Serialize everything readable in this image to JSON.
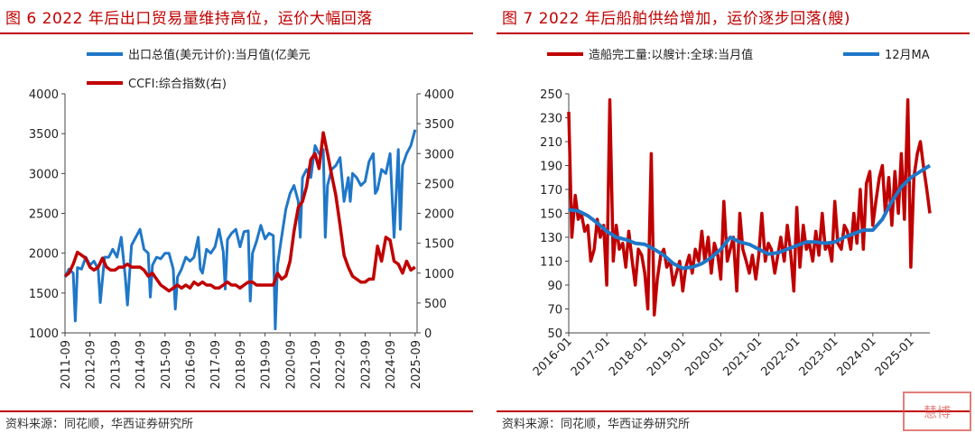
{
  "left": {
    "title": "图 6 2022 年后出口贸易量维持高位，运价大幅回落",
    "source": "资料来源：同花顺，华西证券研究所"
  },
  "right": {
    "title": "图 7 2022 年后船舶供给增加，运价逐步回落(艘)",
    "source": "资料来源：同花顺，华西证券研究所"
  },
  "watermark": "慧博",
  "colors": {
    "blue": "#1f77c8",
    "red": "#c00000"
  },
  "chart_data": [
    {
      "type": "line",
      "title": "",
      "x_range": [
        2011.67,
        2025.75
      ],
      "x_tick_labels": [
        "2011-09",
        "2012-09",
        "2013-09",
        "2014-09",
        "2015-09",
        "2016-09",
        "2017-09",
        "2018-09",
        "2019-09",
        "2020-09",
        "2021-09",
        "2022-09",
        "2023-09",
        "2024-09",
        "2025-09"
      ],
      "x_tick_values": [
        2011.67,
        2012.67,
        2013.67,
        2014.67,
        2015.67,
        2016.67,
        2017.67,
        2018.67,
        2019.67,
        2020.67,
        2021.67,
        2022.67,
        2023.67,
        2024.67,
        2025.67
      ],
      "y_left": {
        "ylim": [
          1000,
          4000
        ],
        "ticks": [
          1000,
          1500,
          2000,
          2500,
          3000,
          3500,
          4000
        ]
      },
      "y_right": {
        "ylim": [
          0,
          4000
        ],
        "ticks": [
          0,
          500,
          1000,
          1500,
          2000,
          2500,
          3000,
          3500,
          4000
        ]
      },
      "series": [
        {
          "name": "出口总值(美元计价):当月值(亿美元",
          "axis": "left",
          "color": "#1f77c8",
          "x": [
            2011.67,
            2011.83,
            2012.0,
            2012.08,
            2012.17,
            2012.33,
            2012.5,
            2012.67,
            2012.83,
            2013.0,
            2013.08,
            2013.25,
            2013.42,
            2013.58,
            2013.75,
            2013.92,
            2014.08,
            2014.17,
            2014.33,
            2014.5,
            2014.67,
            2014.83,
            2015.0,
            2015.08,
            2015.17,
            2015.33,
            2015.5,
            2015.67,
            2015.83,
            2016.0,
            2016.08,
            2016.17,
            2016.33,
            2016.5,
            2016.67,
            2016.83,
            2017.0,
            2017.08,
            2017.17,
            2017.33,
            2017.5,
            2017.67,
            2017.83,
            2018.0,
            2018.08,
            2018.17,
            2018.33,
            2018.5,
            2018.67,
            2018.83,
            2019.0,
            2019.08,
            2019.17,
            2019.33,
            2019.5,
            2019.67,
            2019.83,
            2020.0,
            2020.08,
            2020.17,
            2020.33,
            2020.5,
            2020.67,
            2020.83,
            2021.0,
            2021.08,
            2021.17,
            2021.33,
            2021.5,
            2021.67,
            2021.83,
            2022.0,
            2022.08,
            2022.17,
            2022.33,
            2022.5,
            2022.67,
            2022.83,
            2023.0,
            2023.08,
            2023.17,
            2023.33,
            2023.5,
            2023.67,
            2023.83,
            2024.0,
            2024.08,
            2024.17,
            2024.33,
            2024.5,
            2024.67,
            2024.83,
            2025.0,
            2025.08,
            2025.17,
            2025.33,
            2025.5,
            2025.67
          ],
          "values": [
            1700,
            1800,
            1750,
            1150,
            1820,
            1800,
            1950,
            1850,
            1900,
            1800,
            1380,
            1950,
            1950,
            2050,
            1950,
            2200,
            1700,
            1350,
            2100,
            2200,
            2300,
            2050,
            2000,
            1450,
            1850,
            1950,
            1930,
            2000,
            2000,
            1800,
            1300,
            1700,
            1800,
            1950,
            1900,
            1950,
            2200,
            1800,
            1750,
            2050,
            2000,
            2080,
            2300,
            2020,
            1550,
            2170,
            2250,
            2300,
            2080,
            2270,
            2280,
            1400,
            2000,
            2150,
            2350,
            2180,
            2250,
            2220,
            1050,
            1850,
            2200,
            2550,
            2750,
            2850,
            2650,
            2200,
            2950,
            3050,
            2950,
            3350,
            3250,
            3300,
            2200,
            2850,
            3050,
            3100,
            3200,
            2650,
            2950,
            2650,
            3000,
            2950,
            2850,
            2900,
            3150,
            3250,
            2750,
            2800,
            3050,
            3000,
            3250,
            2200,
            3300,
            2300,
            3100,
            3250,
            3350,
            3550
          ]
        },
        {
          "name": "CCFI:综合指数(右)",
          "axis": "right",
          "color": "#c00000",
          "x": [
            2011.67,
            2011.83,
            2012.0,
            2012.17,
            2012.33,
            2012.5,
            2012.67,
            2012.83,
            2013.0,
            2013.17,
            2013.33,
            2013.5,
            2013.67,
            2013.83,
            2014.0,
            2014.17,
            2014.33,
            2014.5,
            2014.67,
            2014.83,
            2015.0,
            2015.17,
            2015.33,
            2015.5,
            2015.67,
            2015.83,
            2016.0,
            2016.17,
            2016.33,
            2016.5,
            2016.67,
            2016.83,
            2017.0,
            2017.17,
            2017.33,
            2017.5,
            2017.67,
            2017.83,
            2018.0,
            2018.17,
            2018.33,
            2018.5,
            2018.67,
            2018.83,
            2019.0,
            2019.17,
            2019.33,
            2019.5,
            2019.67,
            2019.83,
            2020.0,
            2020.17,
            2020.33,
            2020.5,
            2020.67,
            2020.83,
            2021.0,
            2021.17,
            2021.33,
            2021.5,
            2021.67,
            2021.83,
            2022.0,
            2022.17,
            2022.33,
            2022.5,
            2022.67,
            2022.83,
            2023.0,
            2023.17,
            2023.33,
            2023.5,
            2023.67,
            2023.83,
            2024.0,
            2024.17,
            2024.33,
            2024.5,
            2024.67,
            2024.83,
            2025.0,
            2025.17,
            2025.33,
            2025.5,
            2025.67
          ],
          "values": [
            950,
            1000,
            1150,
            1350,
            1300,
            1250,
            1100,
            1050,
            1100,
            1250,
            1100,
            1050,
            1050,
            1100,
            1100,
            1150,
            1100,
            1100,
            1100,
            1050,
            950,
            1000,
            900,
            800,
            750,
            700,
            750,
            800,
            750,
            800,
            750,
            850,
            800,
            850,
            800,
            800,
            750,
            750,
            800,
            850,
            800,
            800,
            750,
            800,
            850,
            850,
            800,
            800,
            800,
            800,
            800,
            1000,
            900,
            950,
            1200,
            1700,
            2100,
            2200,
            2450,
            2900,
            3000,
            2750,
            3350,
            3000,
            2650,
            2300,
            1800,
            1300,
            1100,
            950,
            900,
            850,
            850,
            900,
            900,
            1450,
            1200,
            1600,
            1550,
            1200,
            1150,
            1000,
            1200,
            1050,
            1100
          ]
        }
      ]
    },
    {
      "type": "line",
      "title": "",
      "x_range": [
        2016.0,
        2025.5
      ],
      "x_tick_labels": [
        "2016-01",
        "2017-01",
        "2018-01",
        "2019-01",
        "2020-01",
        "2021-01",
        "2022-01",
        "2023-01",
        "2024-01",
        "2025-01"
      ],
      "x_tick_values": [
        2016.0,
        2017.0,
        2018.0,
        2019.0,
        2020.0,
        2021.0,
        2022.0,
        2023.0,
        2024.0,
        2025.0
      ],
      "ylim": [
        50,
        250
      ],
      "y_ticks": [
        50,
        70,
        90,
        110,
        130,
        150,
        170,
        190,
        210,
        230,
        250
      ],
      "series": [
        {
          "name": "造船完工量:以艘计:全球:当月值",
          "color": "#c00000",
          "x": [
            2016.0,
            2016.08,
            2016.17,
            2016.25,
            2016.33,
            2016.42,
            2016.5,
            2016.58,
            2016.67,
            2016.75,
            2016.83,
            2016.92,
            2017.0,
            2017.08,
            2017.17,
            2017.25,
            2017.33,
            2017.42,
            2017.5,
            2017.58,
            2017.67,
            2017.75,
            2017.83,
            2017.92,
            2018.0,
            2018.08,
            2018.17,
            2018.25,
            2018.33,
            2018.42,
            2018.5,
            2018.58,
            2018.67,
            2018.75,
            2018.83,
            2018.92,
            2019.0,
            2019.08,
            2019.17,
            2019.25,
            2019.33,
            2019.42,
            2019.5,
            2019.58,
            2019.67,
            2019.75,
            2019.83,
            2019.92,
            2020.0,
            2020.08,
            2020.17,
            2020.25,
            2020.33,
            2020.42,
            2020.5,
            2020.58,
            2020.67,
            2020.75,
            2020.83,
            2020.92,
            2021.0,
            2021.08,
            2021.17,
            2021.25,
            2021.33,
            2021.42,
            2021.5,
            2021.58,
            2021.67,
            2021.75,
            2021.83,
            2021.92,
            2022.0,
            2022.08,
            2022.17,
            2022.25,
            2022.33,
            2022.42,
            2022.5,
            2022.58,
            2022.67,
            2022.75,
            2022.83,
            2022.92,
            2023.0,
            2023.08,
            2023.17,
            2023.25,
            2023.33,
            2023.42,
            2023.5,
            2023.58,
            2023.67,
            2023.75,
            2023.83,
            2023.92,
            2024.0,
            2024.08,
            2024.17,
            2024.25,
            2024.33,
            2024.42,
            2024.5,
            2024.58,
            2024.67,
            2024.75,
            2024.83,
            2024.92,
            2025.0,
            2025.08,
            2025.17,
            2025.25,
            2025.33,
            2025.42,
            2025.5
          ],
          "values": [
            235,
            130,
            165,
            145,
            150,
            135,
            140,
            110,
            120,
            145,
            130,
            140,
            90,
            245,
            110,
            140,
            120,
            125,
            105,
            135,
            110,
            90,
            120,
            115,
            100,
            70,
            200,
            65,
            95,
            115,
            120,
            105,
            110,
            90,
            100,
            110,
            85,
            105,
            115,
            100,
            120,
            110,
            135,
            110,
            130,
            100,
            125,
            115,
            95,
            160,
            110,
            120,
            130,
            85,
            150,
            120,
            110,
            100,
            115,
            95,
            115,
            150,
            110,
            125,
            120,
            100,
            115,
            130,
            110,
            140,
            120,
            85,
            155,
            105,
            140,
            120,
            125,
            110,
            135,
            115,
            150,
            120,
            125,
            110,
            160,
            125,
            120,
            140,
            135,
            120,
            150,
            125,
            170,
            120,
            175,
            185,
            140,
            160,
            180,
            190,
            150,
            180,
            140,
            185,
            150,
            200,
            145,
            245,
            105,
            180,
            200,
            210,
            190,
            170,
            150
          ]
        },
        {
          "name": "12月MA",
          "color": "#1f77c8",
          "x": [
            2016.0,
            2016.25,
            2016.5,
            2016.75,
            2017.0,
            2017.25,
            2017.5,
            2017.75,
            2018.0,
            2018.25,
            2018.5,
            2018.75,
            2019.0,
            2019.25,
            2019.5,
            2019.75,
            2020.0,
            2020.25,
            2020.5,
            2020.75,
            2021.0,
            2021.25,
            2021.5,
            2021.75,
            2022.0,
            2022.25,
            2022.5,
            2022.75,
            2023.0,
            2023.25,
            2023.5,
            2023.75,
            2024.0,
            2024.25,
            2024.5,
            2024.75,
            2025.0,
            2025.25,
            2025.5
          ],
          "values": [
            153,
            152,
            148,
            142,
            135,
            130,
            128,
            125,
            124,
            120,
            115,
            108,
            104,
            105,
            108,
            113,
            120,
            130,
            126,
            124,
            120,
            116,
            117,
            120,
            123,
            126,
            126,
            125,
            126,
            130,
            133,
            136,
            136,
            145,
            160,
            172,
            180,
            185,
            190
          ]
        }
      ]
    }
  ]
}
